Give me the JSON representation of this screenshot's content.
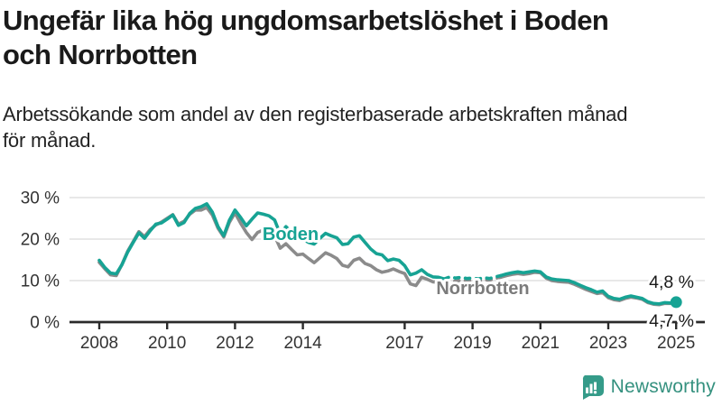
{
  "header": {
    "title_line1": "Ungefär lika hög ungdomsarbetslöshet i Boden",
    "title_line2": "och Norrbotten",
    "subtitle_line1": "Arbetssökande som andel av den registerbaserade arbetskraften månad",
    "subtitle_line2": "för månad."
  },
  "footer": {
    "brand": "Newsworthy",
    "logo_icon": "bar-chart-speech-bubble-icon"
  },
  "colors": {
    "boden": "#17a394",
    "norrbotten": "#8b8b8b",
    "norrbotten_label": "#7b7b7b",
    "axis": "#2b2b2b",
    "grid": "#d9d9d9",
    "tick_text": "#333333",
    "end_label_text": "#1a1a1a",
    "brand": "#359b89"
  },
  "chart_data": {
    "type": "line",
    "title": "Ungefär lika hög ungdomsarbetslöshet i Boden och Norrbotten",
    "subtitle": "Arbetssökande som andel av den registerbaserade arbetskraften månad för månad.",
    "xlabel": "",
    "ylabel": "",
    "ylim": [
      0,
      30
    ],
    "xlim": [
      2007.1,
      2025.85
    ],
    "grid": "horizontal",
    "legend_position": "inline-labels",
    "x_start_year": 2008,
    "x_step_months": 2,
    "dashed_range": [
      2018.2,
      2019.8
    ],
    "yticks": [
      {
        "value": 0,
        "label": "0 %"
      },
      {
        "value": 10,
        "label": "10 %"
      },
      {
        "value": 20,
        "label": "20 %"
      },
      {
        "value": 30,
        "label": "30 %"
      }
    ],
    "xticks": [
      {
        "year": 2008,
        "label": "2008"
      },
      {
        "year": 2010,
        "label": "2010"
      },
      {
        "year": 2012,
        "label": "2012"
      },
      {
        "year": 2014,
        "label": "2014"
      },
      {
        "year": 2017,
        "label": "2017"
      },
      {
        "year": 2019,
        "label": "2019"
      },
      {
        "year": 2021,
        "label": "2021"
      },
      {
        "year": 2023,
        "label": "2023"
      },
      {
        "year": 2025,
        "label": "2025"
      }
    ],
    "series": [
      {
        "name": "Norrbotten",
        "color_key": "norrbotten",
        "label": {
          "text": "Norrbotten",
          "x": 535,
          "y": 326,
          "color_key": "norrbotten_label"
        },
        "end_label": {
          "text": "4,7 %",
          "x": 769,
          "y": 362
        },
        "end_value": 4.7,
        "end_dot": false,
        "values": [
          14.4,
          12.8,
          11.4,
          11.2,
          13.9,
          17.0,
          19.4,
          21.8,
          20.6,
          22.3,
          23.4,
          24.1,
          25.0,
          25.9,
          23.6,
          24.3,
          26.0,
          27.0,
          27.0,
          27.6,
          25.8,
          22.6,
          20.5,
          24.0,
          26.3,
          23.8,
          21.6,
          19.9,
          21.6,
          22.2,
          21.2,
          20.8,
          17.8,
          18.9,
          17.5,
          16.2,
          16.4,
          15.3,
          14.3,
          15.5,
          16.7,
          16.1,
          15.3,
          13.7,
          13.3,
          14.9,
          15.4,
          14.1,
          13.6,
          12.6,
          12.0,
          12.3,
          12.8,
          12.2,
          11.7,
          9.2,
          8.8,
          10.8,
          10.3,
          9.7,
          9.6,
          9.3,
          9.9,
          9.8,
          10.1,
          9.9,
          10.0,
          9.9,
          10.2,
          10.1,
          10.5,
          10.8,
          11.2,
          11.5,
          11.7,
          11.5,
          11.7,
          12.0,
          11.9,
          10.6,
          10.0,
          9.8,
          9.7,
          9.6,
          9.1,
          8.5,
          7.9,
          7.4,
          6.9,
          7.1,
          5.9,
          5.4,
          5.2,
          5.7,
          6.0,
          5.8,
          5.5,
          4.7,
          4.3,
          4.2,
          4.5,
          4.5,
          4.7
        ]
      },
      {
        "name": "Boden",
        "color_key": "boden",
        "label": {
          "text": "Boden",
          "x": 322,
          "y": 266,
          "color_key": "boden"
        },
        "end_label": {
          "text": "4,8 %",
          "x": 769,
          "y": 319
        },
        "end_value": 4.8,
        "end_dot": true,
        "values": [
          14.9,
          13.1,
          11.8,
          11.6,
          13.8,
          16.8,
          19.2,
          21.5,
          20.2,
          22.0,
          23.6,
          23.9,
          24.8,
          25.8,
          23.3,
          24.0,
          26.2,
          27.4,
          27.8,
          28.5,
          26.5,
          23.0,
          20.8,
          24.5,
          27.0,
          25.2,
          23.2,
          24.8,
          26.3,
          26.0,
          25.6,
          24.6,
          21.2,
          23.0,
          21.6,
          20.3,
          20.0,
          19.2,
          18.8,
          20.2,
          21.4,
          20.8,
          20.3,
          18.7,
          18.9,
          20.5,
          20.8,
          19.2,
          17.6,
          16.5,
          16.2,
          14.8,
          15.2,
          14.9,
          13.6,
          11.4,
          11.8,
          12.6,
          11.5,
          10.9,
          10.8,
          10.4,
          10.9,
          10.6,
          10.8,
          10.5,
          10.6,
          10.4,
          10.7,
          10.5,
          10.9,
          11.2,
          11.6,
          11.9,
          12.1,
          11.9,
          12.1,
          12.3,
          12.1,
          10.9,
          10.4,
          10.2,
          10.1,
          10.0,
          9.5,
          8.9,
          8.3,
          7.8,
          7.2,
          7.5,
          6.2,
          5.7,
          5.5,
          6.0,
          6.3,
          6.0,
          5.7,
          4.9,
          4.5,
          4.4,
          4.7,
          4.6,
          4.8
        ]
      }
    ]
  }
}
